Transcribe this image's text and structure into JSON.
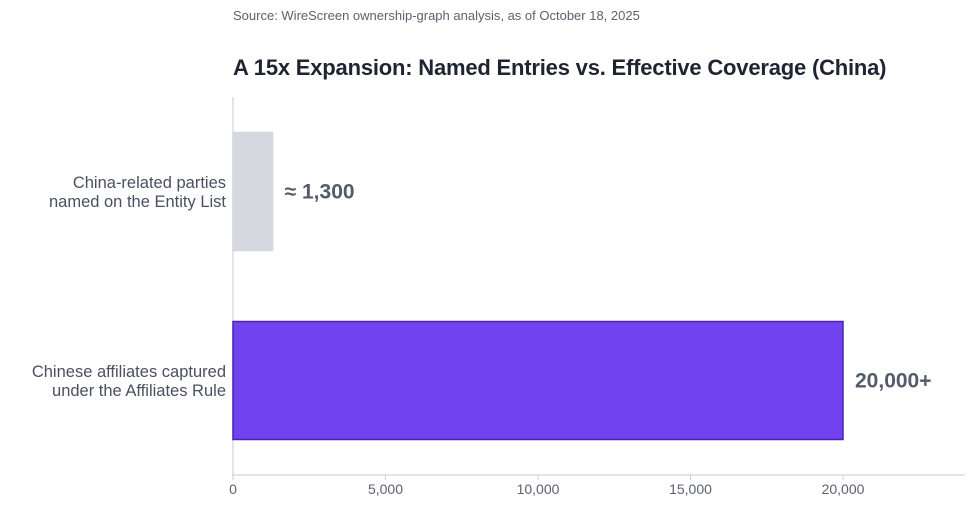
{
  "source": "Source: WireScreen ownership-graph analysis, as of October 18, 2025",
  "chart_data": {
    "type": "bar",
    "orientation": "horizontal",
    "title": "A 15x Expansion: Named Entries vs. Effective Coverage (China)",
    "categories": [
      [
        "China-related parties",
        "named on the Entity List"
      ],
      [
        "Chinese affiliates captured",
        "under the Affiliates Rule"
      ]
    ],
    "values": [
      1300,
      20000
    ],
    "data_labels": [
      "≈ 1,300",
      "20,000+"
    ],
    "bar_colors": [
      "#d5d8df",
      "#7143ef"
    ],
    "bar_edge_colors": [
      "#d5d8df",
      "#4b22b5"
    ],
    "xlim": [
      0,
      24000
    ],
    "xticks": [
      0,
      5000,
      10000,
      15000,
      20000
    ],
    "xtick_labels": [
      "0",
      "5,000",
      "10,000",
      "15,000",
      "20,000"
    ],
    "xlabel": "",
    "ylabel": "",
    "grid": false,
    "legend": "none"
  }
}
